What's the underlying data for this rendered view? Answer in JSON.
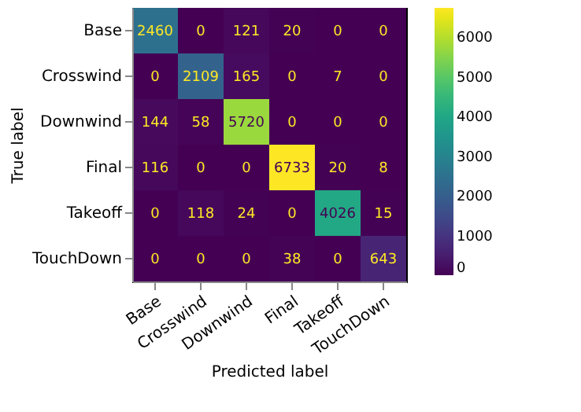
{
  "chart_data": {
    "type": "heatmap",
    "xlabel": "Predicted label",
    "ylabel": "True label",
    "categories": [
      "Base",
      "Crosswind",
      "Downwind",
      "Final",
      "Takeoff",
      "TouchDown"
    ],
    "y_categories": [
      "Base",
      "Crosswind",
      "Downwind",
      "Final",
      "Takeoff",
      "TouchDown"
    ],
    "cells": [
      [
        2460,
        0,
        121,
        20,
        0,
        0
      ],
      [
        0,
        2109,
        165,
        0,
        7,
        0
      ],
      [
        144,
        58,
        5720,
        0,
        0,
        0
      ],
      [
        116,
        0,
        0,
        6733,
        20,
        8
      ],
      [
        0,
        118,
        24,
        0,
        4026,
        15
      ],
      [
        0,
        0,
        0,
        38,
        0,
        643
      ]
    ],
    "clim": [
      0,
      6733
    ],
    "cticks": [
      0,
      1000,
      2000,
      3000,
      4000,
      5000,
      6000
    ],
    "data_labels": true
  }
}
